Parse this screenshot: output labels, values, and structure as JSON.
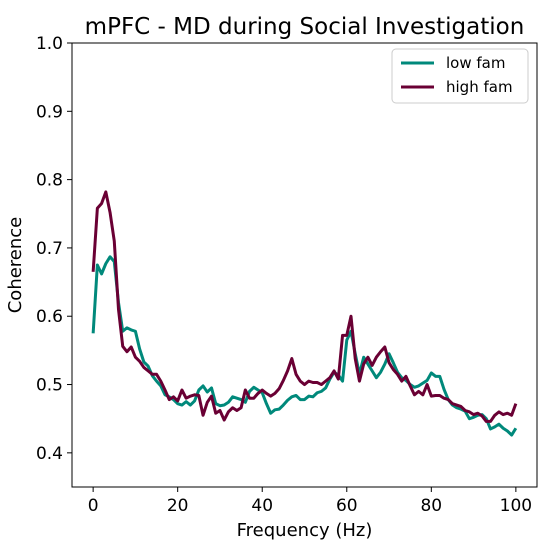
{
  "chart_data": {
    "type": "line",
    "title": "mPFC - MD during Social Investigation",
    "xlabel": "Frequency (Hz)",
    "ylabel": "Coherence",
    "xlim": [
      -5,
      105
    ],
    "ylim": [
      0.35,
      1.0
    ],
    "xticks": [
      0,
      20,
      40,
      60,
      80,
      100
    ],
    "yticks": [
      0.4,
      0.5,
      0.6,
      0.7,
      0.8,
      0.9,
      1.0
    ],
    "grid": false,
    "legend_position": "top-right",
    "series": [
      {
        "name": "low fam",
        "color": "#00897b",
        "x": [
          0,
          1,
          2,
          3,
          4,
          5,
          6,
          7,
          8,
          9,
          10,
          11,
          12,
          13,
          14,
          15,
          16,
          17,
          18,
          19,
          20,
          21,
          22,
          23,
          24,
          25,
          26,
          27,
          28,
          29,
          30,
          31,
          32,
          33,
          34,
          35,
          36,
          37,
          38,
          39,
          40,
          41,
          42,
          43,
          44,
          45,
          46,
          47,
          48,
          49,
          50,
          51,
          52,
          53,
          54,
          55,
          56,
          57,
          58,
          59,
          60,
          61,
          62,
          63,
          64,
          65,
          66,
          67,
          68,
          69,
          70,
          71,
          72,
          73,
          74,
          75,
          76,
          77,
          78,
          79,
          80,
          81,
          82,
          83,
          84,
          85,
          86,
          87,
          88,
          89,
          90,
          91,
          92,
          93,
          94,
          95,
          96,
          97,
          98,
          99,
          100
        ],
        "y": [
          0.575,
          0.675,
          0.662,
          0.677,
          0.687,
          0.68,
          0.62,
          0.578,
          0.583,
          0.58,
          0.578,
          0.552,
          0.533,
          0.527,
          0.513,
          0.505,
          0.498,
          0.485,
          0.482,
          0.478,
          0.472,
          0.47,
          0.475,
          0.47,
          0.476,
          0.492,
          0.498,
          0.489,
          0.495,
          0.472,
          0.469,
          0.47,
          0.474,
          0.482,
          0.48,
          0.478,
          0.474,
          0.49,
          0.496,
          0.492,
          0.488,
          0.472,
          0.458,
          0.463,
          0.464,
          0.47,
          0.477,
          0.482,
          0.484,
          0.478,
          0.478,
          0.483,
          0.482,
          0.488,
          0.49,
          0.495,
          0.508,
          0.518,
          0.514,
          0.505,
          0.565,
          0.578,
          0.545,
          0.515,
          0.54,
          0.53,
          0.52,
          0.51,
          0.518,
          0.53,
          0.545,
          0.532,
          0.518,
          0.51,
          0.506,
          0.5,
          0.496,
          0.498,
          0.502,
          0.506,
          0.517,
          0.512,
          0.512,
          0.493,
          0.478,
          0.47,
          0.466,
          0.464,
          0.461,
          0.45,
          0.452,
          0.455,
          0.456,
          0.45,
          0.435,
          0.438,
          0.442,
          0.436,
          0.432,
          0.426,
          0.436
        ]
      },
      {
        "name": "high fam",
        "color": "#6a0034",
        "x": [
          0,
          1,
          2,
          3,
          4,
          5,
          6,
          7,
          8,
          9,
          10,
          11,
          12,
          13,
          14,
          15,
          16,
          17,
          18,
          19,
          20,
          21,
          22,
          23,
          24,
          25,
          26,
          27,
          28,
          29,
          30,
          31,
          32,
          33,
          34,
          35,
          36,
          37,
          38,
          39,
          40,
          41,
          42,
          43,
          44,
          45,
          46,
          47,
          48,
          49,
          50,
          51,
          52,
          53,
          54,
          55,
          56,
          57,
          58,
          59,
          60,
          61,
          62,
          63,
          64,
          65,
          66,
          67,
          68,
          69,
          70,
          71,
          72,
          73,
          74,
          75,
          76,
          77,
          78,
          79,
          80,
          81,
          82,
          83,
          84,
          85,
          86,
          87,
          88,
          89,
          90,
          91,
          92,
          93,
          94,
          95,
          96,
          97,
          98,
          99,
          100
        ],
        "y": [
          0.665,
          0.758,
          0.765,
          0.782,
          0.752,
          0.71,
          0.61,
          0.556,
          0.548,
          0.555,
          0.54,
          0.534,
          0.525,
          0.52,
          0.515,
          0.515,
          0.505,
          0.492,
          0.478,
          0.482,
          0.476,
          0.492,
          0.48,
          0.483,
          0.485,
          0.484,
          0.455,
          0.474,
          0.483,
          0.458,
          0.462,
          0.448,
          0.46,
          0.466,
          0.462,
          0.466,
          0.492,
          0.48,
          0.48,
          0.487,
          0.492,
          0.487,
          0.483,
          0.487,
          0.494,
          0.506,
          0.52,
          0.538,
          0.515,
          0.505,
          0.5,
          0.505,
          0.503,
          0.503,
          0.5,
          0.505,
          0.51,
          0.52,
          0.508,
          0.572,
          0.572,
          0.6,
          0.538,
          0.505,
          0.53,
          0.54,
          0.528,
          0.54,
          0.548,
          0.555,
          0.532,
          0.522,
          0.515,
          0.505,
          0.512,
          0.498,
          0.485,
          0.49,
          0.485,
          0.5,
          0.483,
          0.484,
          0.484,
          0.48,
          0.478,
          0.472,
          0.47,
          0.468,
          0.462,
          0.46,
          0.456,
          0.458,
          0.454,
          0.446,
          0.446,
          0.455,
          0.46,
          0.456,
          0.458,
          0.455,
          0.472
        ]
      }
    ]
  }
}
